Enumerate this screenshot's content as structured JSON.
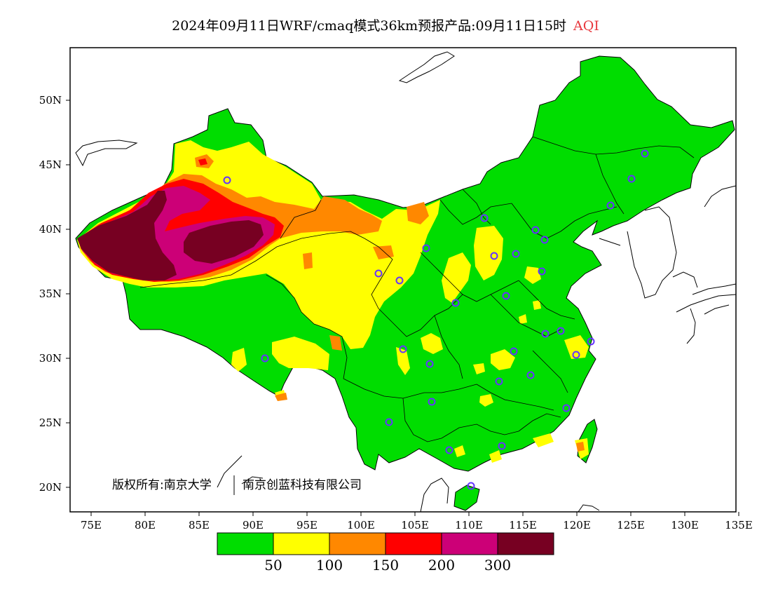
{
  "title": {
    "text": "2024年09月11日WRF/cmaq模式36km预报产品:09月11日15时",
    "variable": "AQI",
    "variable_color": "#e8383d"
  },
  "axes": {
    "lat_ticks": [
      "50N",
      "45N",
      "40N",
      "35N",
      "30N",
      "25N",
      "20N"
    ],
    "lon_ticks": [
      "75E",
      "80E",
      "85E",
      "90E",
      "95E",
      "100E",
      "105E",
      "110E",
      "115E",
      "120E",
      "125E",
      "130E",
      "135E"
    ]
  },
  "colorbar": {
    "colors": [
      "#00dd00",
      "#ffff00",
      "#ff8800",
      "#ff0000",
      "#cc0077",
      "#770022"
    ],
    "labels": [
      "50",
      "100",
      "150",
      "200",
      "300"
    ]
  },
  "copyright": {
    "prefix": "版权所有:南京大学",
    "suffix": "南京创蓝科技有限公司"
  },
  "colors": {
    "good": "#00dd00",
    "moderate": "#ffff00",
    "unhealthy_sensitive": "#ff8800",
    "unhealthy": "#ff0000",
    "very_unhealthy": "#cc0077",
    "hazardous": "#770022",
    "city_marker": "#6633ff"
  }
}
